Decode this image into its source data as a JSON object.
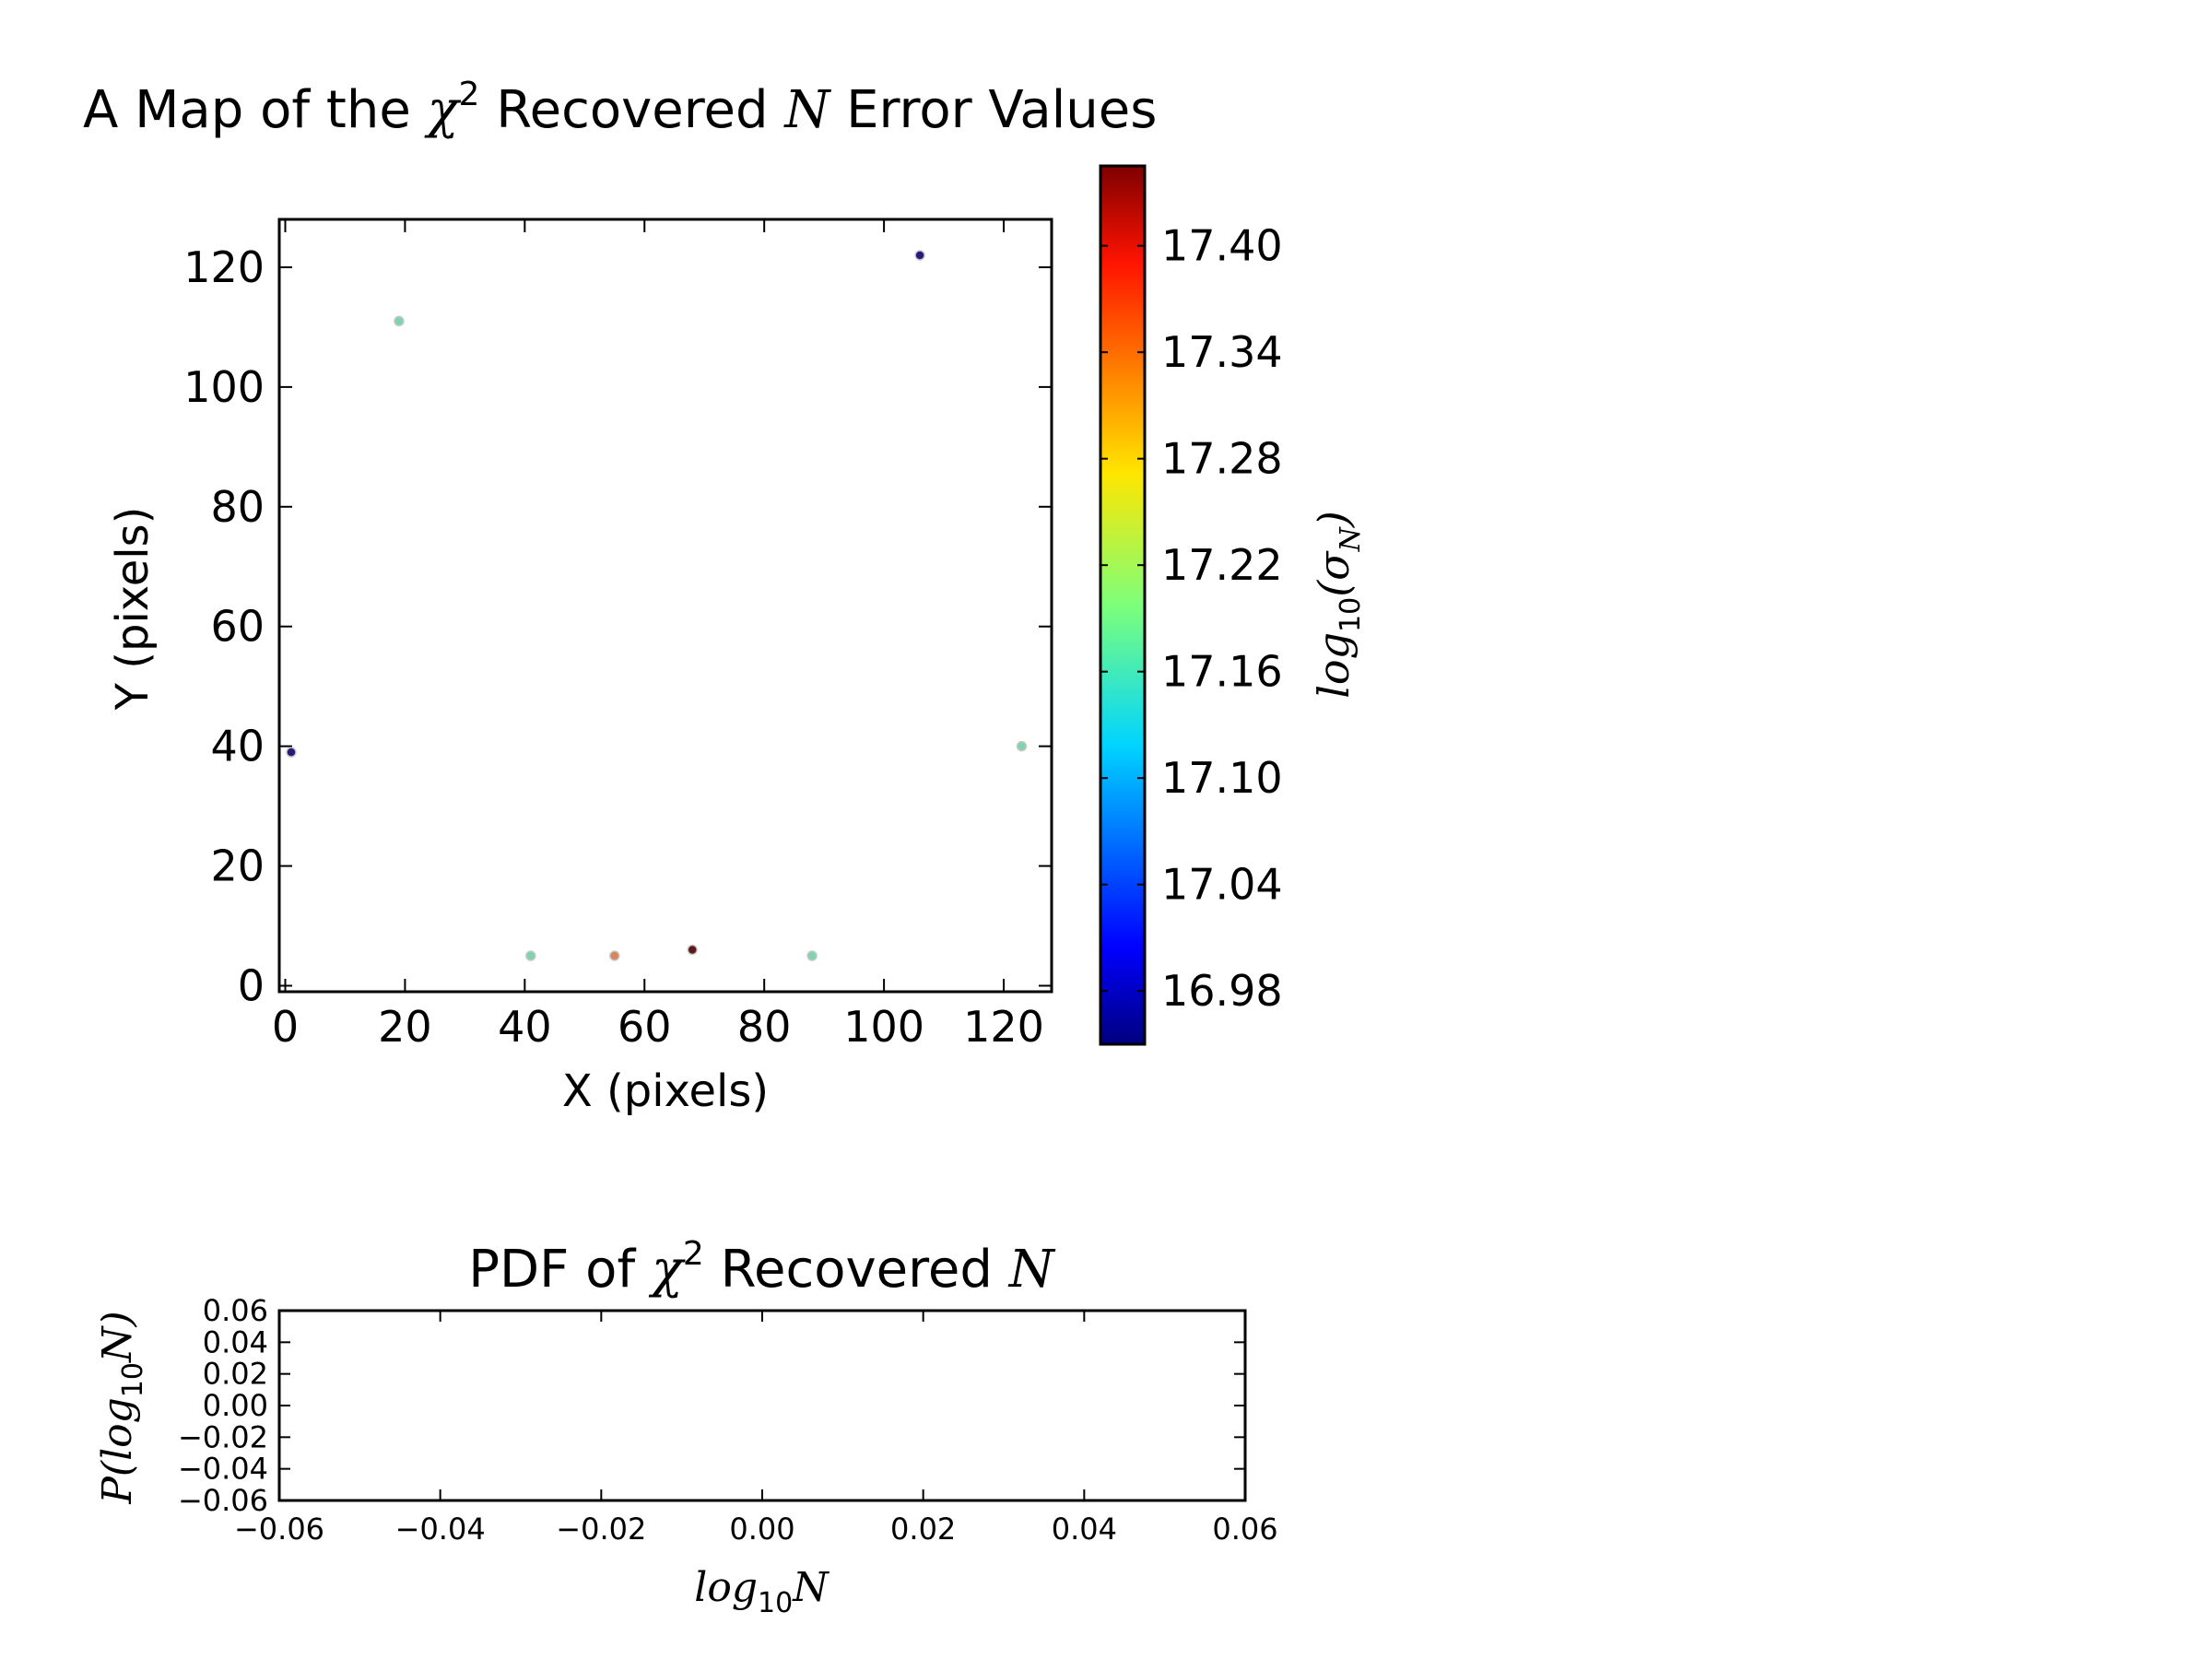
{
  "chart_data": [
    {
      "type": "scatter",
      "title": {
        "pre": "A Map of the ",
        "chi": "χ",
        "sup": "2",
        "mid": " Recovered ",
        "n": "N",
        "post": " Error Values"
      },
      "xlabel": "X (pixels)",
      "ylabel": "Y (pixels)",
      "xlim": [
        -1,
        128
      ],
      "ylim": [
        -1,
        128
      ],
      "xticks": [
        "0",
        "20",
        "40",
        "60",
        "80",
        "100",
        "120"
      ],
      "yticks": [
        "0",
        "20",
        "40",
        "60",
        "80",
        "100",
        "120"
      ],
      "grid": false,
      "colormap": "jet",
      "points": [
        {
          "x": 1,
          "y": 39,
          "value": 16.95,
          "color": "#2a1a78"
        },
        {
          "x": 19,
          "y": 111,
          "value": 17.19,
          "color": "#7fd3ae"
        },
        {
          "x": 41,
          "y": 5,
          "value": 17.19,
          "color": "#7fd3ae"
        },
        {
          "x": 55,
          "y": 5,
          "value": 17.36,
          "color": "#d9865c"
        },
        {
          "x": 68,
          "y": 6,
          "value": 17.44,
          "color": "#5a1a1a"
        },
        {
          "x": 88,
          "y": 5,
          "value": 17.19,
          "color": "#7fd3ae"
        },
        {
          "x": 106,
          "y": 122,
          "value": 16.95,
          "color": "#2a1a78"
        },
        {
          "x": 123,
          "y": 40,
          "value": 17.19,
          "color": "#7fd3ae"
        }
      ],
      "colorbar": {
        "range": [
          16.95,
          17.445
        ],
        "ticks": [
          16.98,
          17.04,
          17.1,
          17.16,
          17.22,
          17.28,
          17.34,
          17.4
        ],
        "tick_labels": [
          "16.98",
          "17.04",
          "17.10",
          "17.16",
          "17.22",
          "17.28",
          "17.34",
          "17.40"
        ],
        "label": {
          "base": "log",
          "base_sub": "10",
          "open": "(σ",
          "sym_sub": "N",
          "close": ")"
        }
      }
    },
    {
      "type": "line",
      "title": {
        "pre": "PDF of ",
        "chi": "χ",
        "sup": "2",
        "mid": " Recovered ",
        "n": "N"
      },
      "xlabel": {
        "base": "log",
        "base_sub": "10",
        "var": "N"
      },
      "ylabel": {
        "pre": "P(log",
        "sub": "10",
        "var": "N",
        "post": ")"
      },
      "xlim": [
        -0.06,
        0.06
      ],
      "ylim": [
        -0.06,
        0.06
      ],
      "xticks": [
        -0.06,
        -0.04,
        -0.02,
        0.0,
        0.02,
        0.04,
        0.06
      ],
      "xtick_labels": [
        "−0.06",
        "−0.04",
        "−0.02",
        "0.00",
        "0.02",
        "0.04",
        "0.06"
      ],
      "yticks": [
        -0.06,
        -0.04,
        -0.02,
        0.0,
        0.02,
        0.04,
        0.06
      ],
      "ytick_labels": [
        "−0.06",
        "−0.04",
        "−0.02",
        "0.00",
        "0.02",
        "0.04",
        "0.06"
      ],
      "grid": false,
      "series": []
    }
  ]
}
